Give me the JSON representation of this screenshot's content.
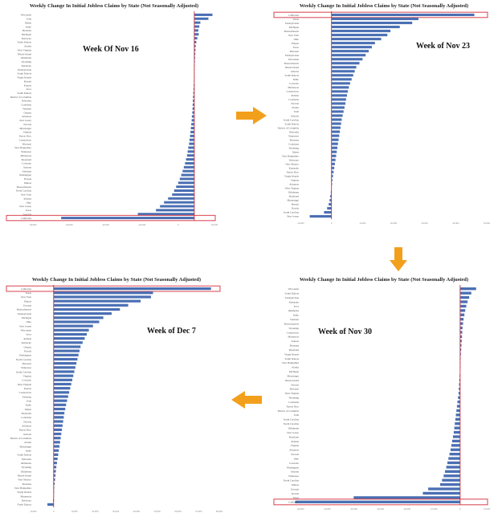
{
  "colors": {
    "bar": "#4a6fb3",
    "axis": "#c8323c",
    "highlight": "#d9424d",
    "arrow": "#f2a01c"
  },
  "chart_data": [
    {
      "type": "bar",
      "orientation": "horizontal",
      "title": "Weekly Change In Initial Jobless Claims by State (Not Seasonally Adjusted)",
      "annotation": "Week Of Nov 16",
      "highlight": "California",
      "xlim": [
        -80000,
        10000
      ],
      "xticks": [
        "-80,000",
        "-60,000",
        "-40,000",
        "-20,000",
        "0",
        "20,000"
      ],
      "categories": [
        "Wisconsin",
        "Utah",
        "Maine",
        "Idaho",
        "Montana",
        "Michigan",
        "Delaware",
        "North Dakota",
        "Alaska",
        "West Virginia",
        "Rhode Island",
        "Oklahoma",
        "Wyoming",
        "Kentucky",
        "Pennsylvania",
        "South Dakota",
        "Virgin Islands",
        "Hawaii",
        "Kansas",
        "Iowa",
        "South Dakota",
        "District of Columbia",
        "Nebraska",
        "Louisiana",
        "Vermont",
        "Oregon",
        "Arkansas",
        "New Jersey",
        "Nevada",
        "Mississippi",
        "Virginia",
        "Puerto Rico",
        "Connecticut",
        "Missouri",
        "New Hampshire",
        "Tennessee",
        "Minnesota",
        "Maryland",
        "Colorado",
        "Arizona",
        "Alabama",
        "Washington",
        "Florida",
        "Illinois",
        "Massachusetts",
        "North Carolina",
        "New York",
        "Indiana",
        "Ohio",
        "New Jersey",
        "Texas",
        "Georgia",
        "California"
      ],
      "values": [
        9000,
        7000,
        3000,
        2500,
        2000,
        2200,
        1500,
        1000,
        700,
        600,
        500,
        400,
        300,
        200,
        150,
        100,
        0,
        -200,
        -300,
        -400,
        -500,
        -600,
        -700,
        -800,
        -900,
        -1000,
        -1200,
        -1300,
        -1500,
        -1700,
        -1900,
        -2100,
        -2400,
        -2600,
        -3000,
        -3300,
        -3600,
        -4100,
        -4600,
        -5200,
        -5800,
        -6500,
        -7200,
        -8000,
        -9000,
        -10000,
        -11000,
        -13000,
        -15000,
        -17000,
        -19000,
        -28000,
        -66000
      ]
    },
    {
      "type": "bar",
      "orientation": "horizontal",
      "title": "Weekly Change In Initial Jobless Claims by State (Not Seasonally Adjusted)",
      "annotation": "Week of Nov 23",
      "highlight": "California",
      "xlim": [
        -10000,
        50000
      ],
      "xticks": [
        "-10,000",
        "0",
        "10,000",
        "20,000",
        "30,000",
        "40,000",
        "50,000"
      ],
      "categories": [
        "California",
        "Texas",
        "Pennsylvania",
        "Michigan",
        "Massachusetts",
        "New York",
        "Ohio",
        "Oregon",
        "Texas",
        "Missouri",
        "Pennsylvania",
        "Wisconsin",
        "Massachusetts",
        "Rhode Island",
        "Arizona",
        "South Dakota",
        "Idaho",
        "Colorado",
        "Minnesota",
        "Connecticut",
        "Indiana",
        "Louisiana",
        "Nevada",
        "Alaska",
        "Utah",
        "Arizona",
        "South Carolina",
        "South Dakota",
        "District of Columbia",
        "Nebraska",
        "Tennessee",
        "Montana",
        "Louisiana",
        "Wyoming",
        "Maine",
        "New Hampshire",
        "Delaware",
        "New Mexico",
        "Kentucky",
        "Puerto Rico",
        "Virgin Islands",
        "Virginia",
        "Arkansas",
        "West Virginia",
        "Oklahoma",
        "Maryland",
        "Mississippi",
        "Hawaii",
        "Florida",
        "South Carolina",
        "New Jersey"
      ],
      "values": [
        46000,
        28000,
        26000,
        22000,
        19000,
        18000,
        16000,
        14000,
        13000,
        12000,
        11000,
        10000,
        9000,
        8000,
        7500,
        7000,
        6500,
        6000,
        5600,
        5300,
        5000,
        4700,
        4500,
        4200,
        3900,
        3600,
        3300,
        3100,
        2900,
        2700,
        2500,
        2300,
        2100,
        1900,
        1700,
        1500,
        1300,
        1100,
        900,
        700,
        500,
        300,
        200,
        100,
        -200,
        -400,
        -600,
        -900,
        -1400,
        -2400,
        -7000
      ]
    },
    {
      "type": "bar",
      "orientation": "horizontal",
      "title": "Weekly Change In Initial Jobless Claims by State (Not Seasonally Adjusted)",
      "annotation": "Week of Nov 30",
      "highlight": "California",
      "xlim": [
        -60000,
        10000
      ],
      "xticks": [
        "-60,000",
        "-50,000",
        "-40,000",
        "-30,000",
        "-20,000",
        "-10,000",
        "0",
        "10,000"
      ],
      "categories": [
        "Wisconsin",
        "South Dakota",
        "Pennsylvania",
        "Kentucky",
        "Iowa",
        "Oklahoma",
        "Idaho",
        "Vermont",
        "Massachusetts",
        "Wyoming",
        "Connecticut",
        "Minnesota",
        "Kansas",
        "Montana",
        "Maryland",
        "Virgin Islands",
        "South Dakota",
        "New Hampshire",
        "Alaska",
        "Michigan",
        "Mississippi",
        "Rhode Island",
        "Nevada",
        "Missouri",
        "West Virginia",
        "Wyoming",
        "Louisiana",
        "Puerto Rico",
        "District of Columbia",
        "Utah",
        "South Carolina",
        "North Carolina",
        "Oklahoma",
        "New Jersey",
        "Maryland",
        "Indiana",
        "Virginia",
        "Arkansas",
        "Nevada",
        "Ohio",
        "Colorado",
        "Washington",
        "Arizona",
        "Tennessee",
        "North Carolina",
        "Illinois",
        "Georgia",
        "Florida",
        "Texas",
        "California"
      ],
      "values": [
        6000,
        4200,
        3400,
        2800,
        2300,
        1900,
        1600,
        1300,
        1100,
        900,
        800,
        700,
        600,
        500,
        400,
        300,
        200,
        100,
        50,
        -100,
        -200,
        -300,
        -400,
        -500,
        -600,
        -800,
        -1000,
        -1200,
        -1400,
        -1600,
        -1800,
        -2000,
        -2200,
        -2400,
        -2700,
        -3000,
        -3300,
        -3600,
        -4000,
        -4400,
        -4800,
        -5200,
        -5700,
        -6200,
        -6800,
        -7500,
        -12000,
        -14000,
        -40000,
        -62000
      ]
    },
    {
      "type": "bar",
      "orientation": "horizontal",
      "title": "Weekly Change In Initial Jobless Claims by State (Not Seasonally Adjusted)",
      "annotation": "Week of Dec 7",
      "highlight": "California",
      "xlim": [
        -10000,
        80000
      ],
      "xticks": [
        "-10,000",
        "0",
        "10,000",
        "20,000",
        "30,000",
        "40,000",
        "50,000",
        "60,000",
        "70,000",
        "80,000"
      ],
      "categories": [
        "California",
        "Texas",
        "New York",
        "Illinois",
        "Georgia",
        "Massachusetts",
        "Pennsylvania",
        "Michigan",
        "Ohio",
        "New Jersey",
        "Wisconsin",
        "Iowa",
        "Indiana",
        "Kentucky",
        "Oregon",
        "Florida",
        "Washington",
        "North Carolina",
        "Missouri",
        "Tennessee",
        "South Carolina",
        "Virginia",
        "Colorado",
        "West Virginia",
        "Kansas",
        "Connecticut",
        "Alabama",
        "Utah",
        "Idaho",
        "Maine",
        "Maryland",
        "Louisiana",
        "Nevada",
        "Arkansas",
        "Puerto Rico",
        "Arizona",
        "District of Columbia",
        "Alaska",
        "Mississippi",
        "Idaho",
        "South Dakota",
        "Nebraska",
        "Oklahoma",
        "Wyoming",
        "Oklahoma",
        "Rhode Island",
        "New Mexico",
        "Montana",
        "New Hampshire",
        "Virgin Islands",
        "Minnesota",
        "Delaware",
        "North Dakota"
      ],
      "values": [
        76000,
        48000,
        47000,
        42000,
        36000,
        32000,
        28000,
        24000,
        22000,
        19000,
        17000,
        16000,
        15000,
        14000,
        13000,
        12500,
        12000,
        11500,
        11000,
        10500,
        10000,
        9500,
        9000,
        8500,
        8000,
        7500,
        7000,
        6500,
        6000,
        5600,
        5200,
        4900,
        4600,
        4300,
        4000,
        3700,
        3400,
        3100,
        2800,
        2500,
        2200,
        1900,
        1600,
        1300,
        1100,
        900,
        700,
        500,
        300,
        200,
        100,
        -300,
        -3000
      ]
    }
  ]
}
